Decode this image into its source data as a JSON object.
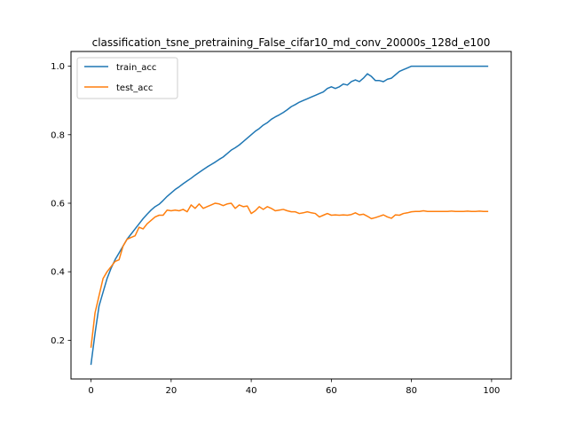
{
  "chart_data": {
    "type": "line",
    "title": "classification_tsne_pretraining_False_cifar10_md_conv_20000s_128d_e100",
    "xlabel": "",
    "ylabel": "",
    "xlim": [
      -5.0,
      104.9
    ],
    "ylim": [
      0.087,
      1.043
    ],
    "xticks": [
      0,
      20,
      40,
      60,
      80,
      100
    ],
    "yticks": [
      0.2,
      0.4,
      0.6,
      0.8,
      1.0
    ],
    "xtick_labels": [
      "0",
      "20",
      "40",
      "60",
      "80",
      "100"
    ],
    "ytick_labels": [
      "0.2",
      "0.4",
      "0.6",
      "0.8",
      "1.0"
    ],
    "grid": false,
    "legend_position": "top-left",
    "series": [
      {
        "name": "train_acc",
        "color": "#1f77b4",
        "x": [
          0,
          1,
          2,
          3,
          4,
          5,
          6,
          7,
          8,
          9,
          10,
          11,
          12,
          13,
          14,
          15,
          16,
          17,
          18,
          19,
          20,
          21,
          22,
          23,
          24,
          25,
          26,
          27,
          28,
          29,
          30,
          31,
          32,
          33,
          34,
          35,
          36,
          37,
          38,
          39,
          40,
          41,
          42,
          43,
          44,
          45,
          46,
          47,
          48,
          49,
          50,
          51,
          52,
          53,
          54,
          55,
          56,
          57,
          58,
          59,
          60,
          61,
          62,
          63,
          64,
          65,
          66,
          67,
          68,
          69,
          70,
          71,
          72,
          73,
          74,
          75,
          76,
          77,
          78,
          79,
          80,
          81,
          82,
          83,
          84,
          85,
          86,
          87,
          88,
          89,
          90,
          91,
          92,
          93,
          94,
          95,
          96,
          97,
          98,
          99
        ],
        "y": [
          0.13,
          0.22,
          0.3,
          0.34,
          0.38,
          0.41,
          0.435,
          0.455,
          0.475,
          0.495,
          0.51,
          0.525,
          0.54,
          0.555,
          0.568,
          0.58,
          0.59,
          0.597,
          0.608,
          0.62,
          0.63,
          0.64,
          0.648,
          0.657,
          0.665,
          0.673,
          0.682,
          0.69,
          0.698,
          0.706,
          0.713,
          0.72,
          0.728,
          0.735,
          0.745,
          0.755,
          0.762,
          0.77,
          0.78,
          0.79,
          0.8,
          0.81,
          0.818,
          0.828,
          0.835,
          0.845,
          0.852,
          0.858,
          0.865,
          0.873,
          0.882,
          0.888,
          0.895,
          0.9,
          0.905,
          0.91,
          0.915,
          0.92,
          0.925,
          0.935,
          0.94,
          0.935,
          0.94,
          0.948,
          0.945,
          0.955,
          0.96,
          0.955,
          0.965,
          0.978,
          0.97,
          0.958,
          0.958,
          0.955,
          0.962,
          0.965,
          0.975,
          0.985,
          0.99,
          0.995,
          1.0,
          1.0,
          1.0,
          1.0,
          1.0,
          1.0,
          1.0,
          1.0,
          1.0,
          1.0,
          1.0,
          1.0,
          1.0,
          1.0,
          1.0,
          1.0,
          1.0,
          1.0,
          1.0,
          1.0
        ]
      },
      {
        "name": "test_acc",
        "color": "#ff7f0e",
        "x": [
          0,
          1,
          2,
          3,
          4,
          5,
          6,
          7,
          8,
          9,
          10,
          11,
          12,
          13,
          14,
          15,
          16,
          17,
          18,
          19,
          20,
          21,
          22,
          23,
          24,
          25,
          26,
          27,
          28,
          29,
          30,
          31,
          32,
          33,
          34,
          35,
          36,
          37,
          38,
          39,
          40,
          41,
          42,
          43,
          44,
          45,
          46,
          47,
          48,
          49,
          50,
          51,
          52,
          53,
          54,
          55,
          56,
          57,
          58,
          59,
          60,
          61,
          62,
          63,
          64,
          65,
          66,
          67,
          68,
          69,
          70,
          71,
          72,
          73,
          74,
          75,
          76,
          77,
          78,
          79,
          80,
          81,
          82,
          83,
          84,
          85,
          86,
          87,
          88,
          89,
          90,
          91,
          92,
          93,
          94,
          95,
          96,
          97,
          98,
          99
        ],
        "y": [
          0.18,
          0.28,
          0.33,
          0.38,
          0.4,
          0.415,
          0.43,
          0.435,
          0.475,
          0.495,
          0.5,
          0.505,
          0.53,
          0.525,
          0.54,
          0.55,
          0.56,
          0.565,
          0.565,
          0.58,
          0.578,
          0.58,
          0.578,
          0.582,
          0.575,
          0.595,
          0.585,
          0.598,
          0.585,
          0.59,
          0.595,
          0.6,
          0.598,
          0.593,
          0.598,
          0.6,
          0.585,
          0.595,
          0.59,
          0.592,
          0.57,
          0.578,
          0.59,
          0.582,
          0.59,
          0.585,
          0.578,
          0.58,
          0.582,
          0.578,
          0.575,
          0.575,
          0.57,
          0.572,
          0.575,
          0.572,
          0.57,
          0.56,
          0.565,
          0.57,
          0.565,
          0.566,
          0.565,
          0.566,
          0.565,
          0.567,
          0.572,
          0.566,
          0.568,
          0.562,
          0.555,
          0.558,
          0.562,
          0.566,
          0.56,
          0.556,
          0.566,
          0.565,
          0.57,
          0.572,
          0.575,
          0.576,
          0.576,
          0.578,
          0.576,
          0.576,
          0.576,
          0.576,
          0.576,
          0.576,
          0.577,
          0.576,
          0.576,
          0.576,
          0.577,
          0.576,
          0.576,
          0.577,
          0.576,
          0.576
        ]
      }
    ]
  }
}
